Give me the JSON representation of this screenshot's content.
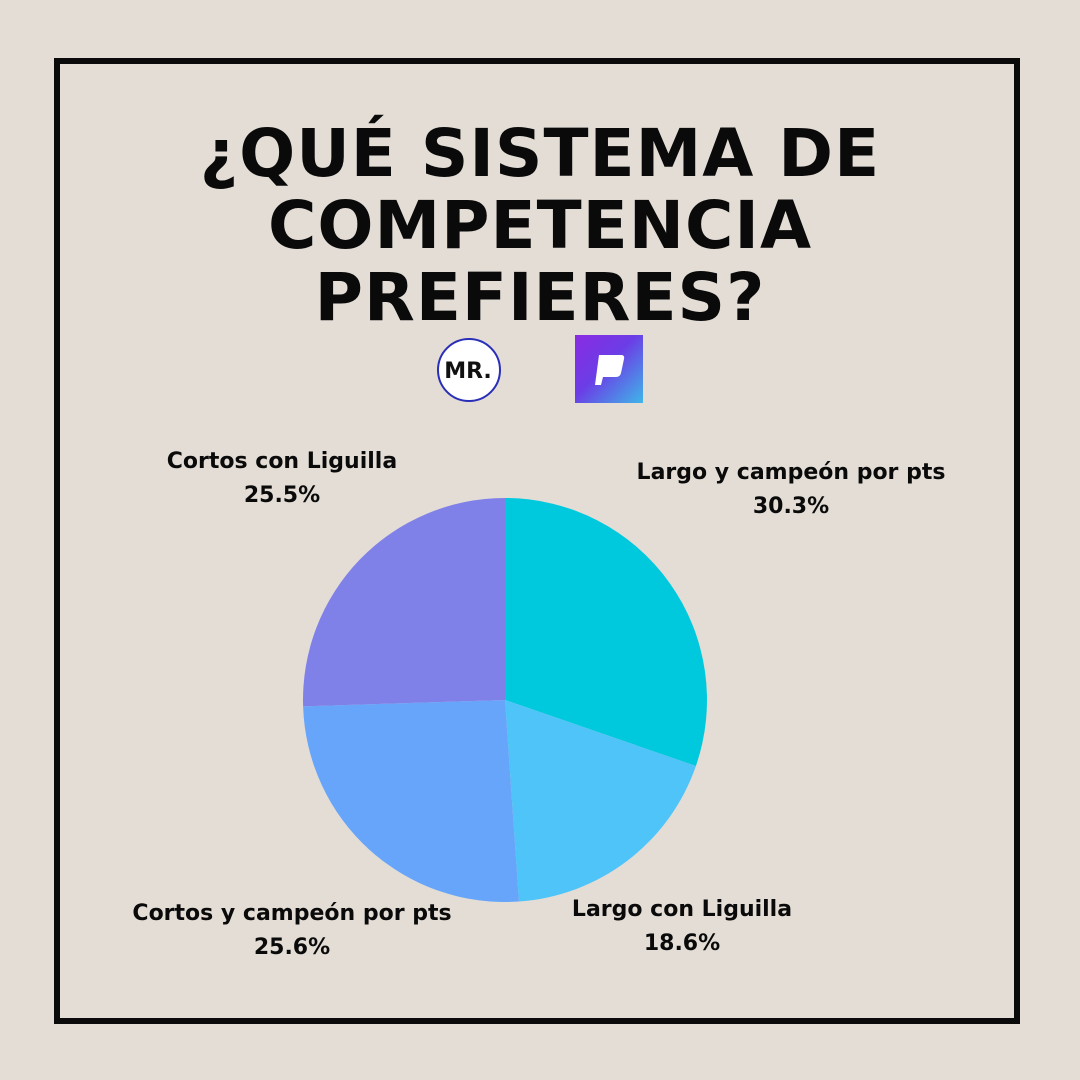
{
  "title": {
    "line1": "¿QUÉ SISTEMA DE",
    "line2": "COMPETENCIA",
    "line3": "PREFIERES?"
  },
  "logos": {
    "left_text": "MR.",
    "left_accent": "#2a2fb8",
    "right_icon": "flag-app-icon",
    "right_colors": [
      "#8a2be2",
      "#3fb6e8"
    ]
  },
  "chart_data": {
    "type": "pie",
    "title": "¿QUÉ SISTEMA DE COMPETENCIA PREFIERES?",
    "start_angle_deg": 0,
    "direction": "clockwise",
    "slices": [
      {
        "label": "Largo y campeón por pts",
        "value": 30.3,
        "value_label": "30.3%",
        "color": "#00c9dd"
      },
      {
        "label": "Largo con Liguilla",
        "value": 18.6,
        "value_label": "18.6%",
        "color": "#4ec4f8"
      },
      {
        "label": "Cortos y campeón por pts",
        "value": 25.6,
        "value_label": "25.6%",
        "color": "#66a5fa"
      },
      {
        "label": "Cortos con Liguilla",
        "value": 25.5,
        "value_label": "25.5%",
        "color": "#8081e8"
      }
    ]
  }
}
